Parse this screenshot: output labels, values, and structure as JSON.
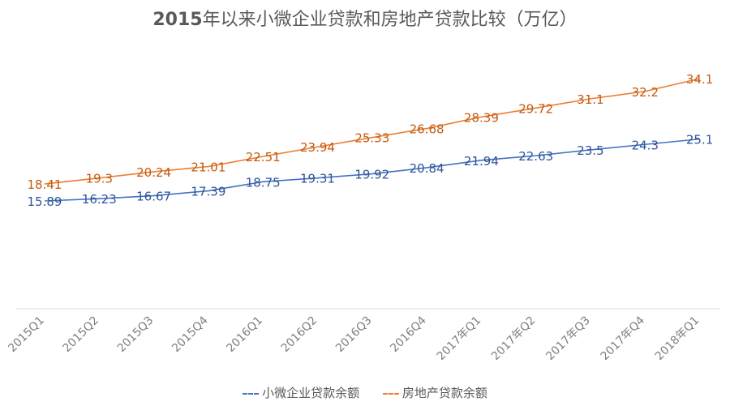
{
  "chart_data": {
    "type": "line",
    "title": "2015年以来小微企业贷款和房地产贷款比较（万亿）",
    "categories": [
      "2015Q1",
      "2015Q2",
      "2015Q3",
      "2015Q4",
      "2016Q1",
      "2016Q2",
      "2016Q3",
      "2016Q4",
      "2017年Q1",
      "2017年Q2",
      "2017年Q3",
      "2017年Q4",
      "2018年Q1"
    ],
    "series": [
      {
        "name": "小微企业贷款余额",
        "color": "#4472C4",
        "values": [
          15.89,
          16.23,
          16.67,
          17.39,
          18.75,
          19.31,
          19.92,
          20.84,
          21.94,
          22.63,
          23.5,
          24.3,
          25.1
        ],
        "labels": [
          "15.89",
          "16.23",
          "16.67",
          "17.39",
          "18.75",
          "19.31",
          "19.92",
          "20.84",
          "21.94",
          "22.63",
          "23.5",
          "24.3",
          "25.1"
        ]
      },
      {
        "name": "房地产贷款余额",
        "color": "#ED7D31",
        "values": [
          18.41,
          19.3,
          20.24,
          21.01,
          22.51,
          23.94,
          25.33,
          26.68,
          28.39,
          29.72,
          31.1,
          32.2,
          34.1
        ],
        "labels": [
          "18.41",
          "19.3",
          "20.24",
          "21.01",
          "22.51",
          "23.94",
          "25.33",
          "26.68",
          "28.39",
          "29.72",
          "31.1",
          "32.2",
          "34.1"
        ]
      }
    ],
    "ylim": [
      0,
      40
    ],
    "grid": false,
    "legend": "bottom"
  }
}
